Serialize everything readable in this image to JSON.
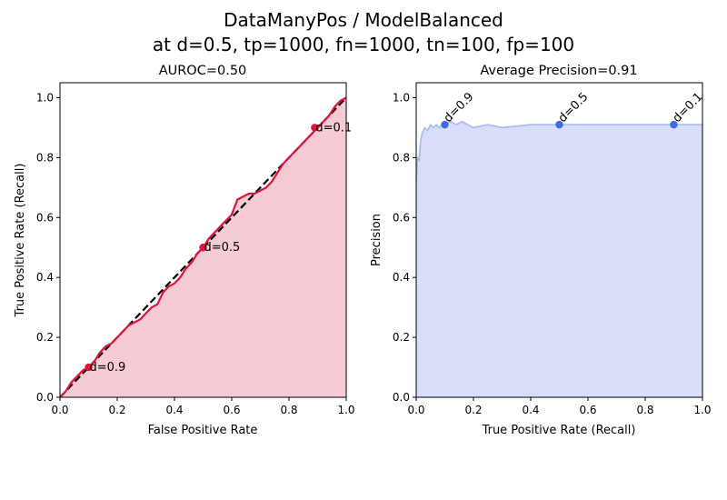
{
  "figure": {
    "title_line1": "DataManyPos / ModelBalanced",
    "title_line2": "at d=0.5, tp=1000, fn=1000, tn=100, fp=100"
  },
  "chart_data": [
    {
      "type": "line",
      "title": "AUROC=0.50",
      "xlabel": "False Positive Rate",
      "ylabel": "True Positive Rate (Recall)",
      "xlim": [
        0,
        1.0
      ],
      "ylim": [
        0,
        1.05
      ],
      "xticks": [
        "0.0",
        "0.2",
        "0.4",
        "0.6",
        "0.8",
        "1.0"
      ],
      "yticks": [
        "0.0",
        "0.2",
        "0.4",
        "0.6",
        "0.8",
        "1.0"
      ],
      "grid": false,
      "fill_under": true,
      "colors": {
        "line": "#dc143c",
        "fill": "#f7cbd6",
        "diagonal": "#000000"
      },
      "series": [
        {
          "x": [
            0.0,
            0.02,
            0.04,
            0.06,
            0.08,
            0.1,
            0.12,
            0.14,
            0.16,
            0.18,
            0.2,
            0.22,
            0.24,
            0.26,
            0.28,
            0.3,
            0.32,
            0.34,
            0.36,
            0.38,
            0.4,
            0.42,
            0.44,
            0.46,
            0.48,
            0.5,
            0.52,
            0.54,
            0.56,
            0.58,
            0.6,
            0.62,
            0.64,
            0.66,
            0.68,
            0.7,
            0.72,
            0.74,
            0.76,
            0.78,
            0.8,
            0.82,
            0.84,
            0.86,
            0.88,
            0.9,
            0.92,
            0.94,
            0.96,
            0.98,
            1.0
          ],
          "y": [
            0.0,
            0.02,
            0.05,
            0.07,
            0.09,
            0.1,
            0.12,
            0.15,
            0.17,
            0.18,
            0.2,
            0.22,
            0.24,
            0.25,
            0.26,
            0.28,
            0.3,
            0.31,
            0.35,
            0.37,
            0.38,
            0.4,
            0.43,
            0.45,
            0.48,
            0.5,
            0.53,
            0.55,
            0.57,
            0.59,
            0.61,
            0.66,
            0.67,
            0.68,
            0.68,
            0.69,
            0.7,
            0.72,
            0.75,
            0.78,
            0.8,
            0.82,
            0.84,
            0.86,
            0.88,
            0.9,
            0.92,
            0.94,
            0.97,
            0.99,
            1.0
          ]
        }
      ],
      "diagonal": {
        "x": [
          0,
          1
        ],
        "y": [
          0,
          1
        ],
        "style": "dashed"
      },
      "points": [
        {
          "x": 0.1,
          "y": 0.1,
          "label": "d=0.9"
        },
        {
          "x": 0.5,
          "y": 0.5,
          "label": "d=0.5"
        },
        {
          "x": 0.89,
          "y": 0.9,
          "label": "d=0.1"
        }
      ]
    },
    {
      "type": "line",
      "title": "Average Precision=0.91",
      "xlabel": "True Positive Rate (Recall)",
      "ylabel": "Precision",
      "xlim": [
        0,
        1.0
      ],
      "ylim": [
        0,
        1.05
      ],
      "xticks": [
        "0.0",
        "0.2",
        "0.4",
        "0.6",
        "0.8",
        "1.0"
      ],
      "yticks": [
        "0.0",
        "0.2",
        "0.4",
        "0.6",
        "0.8",
        "1.0"
      ],
      "grid": false,
      "fill_under": true,
      "colors": {
        "line": "#aebcf0",
        "fill": "#d8def8",
        "point": "#4169e1"
      },
      "series": [
        {
          "x": [
            0.0,
            0.005,
            0.01,
            0.015,
            0.02,
            0.03,
            0.04,
            0.05,
            0.06,
            0.07,
            0.08,
            0.09,
            0.1,
            0.12,
            0.14,
            0.16,
            0.18,
            0.2,
            0.25,
            0.3,
            0.35,
            0.4,
            0.45,
            0.5,
            0.55,
            0.6,
            0.65,
            0.7,
            0.75,
            0.8,
            0.85,
            0.9,
            0.95,
            1.0
          ],
          "y": [
            0.72,
            0.8,
            0.79,
            0.85,
            0.88,
            0.9,
            0.89,
            0.91,
            0.9,
            0.91,
            0.9,
            0.91,
            0.91,
            0.92,
            0.91,
            0.92,
            0.91,
            0.9,
            0.91,
            0.9,
            0.905,
            0.91,
            0.91,
            0.91,
            0.91,
            0.91,
            0.91,
            0.91,
            0.91,
            0.91,
            0.91,
            0.91,
            0.91,
            0.91
          ]
        }
      ],
      "points": [
        {
          "x": 0.1,
          "y": 0.91,
          "label": "d=0.9"
        },
        {
          "x": 0.5,
          "y": 0.91,
          "label": "d=0.5"
        },
        {
          "x": 0.9,
          "y": 0.91,
          "label": "d=0.1"
        }
      ]
    }
  ]
}
